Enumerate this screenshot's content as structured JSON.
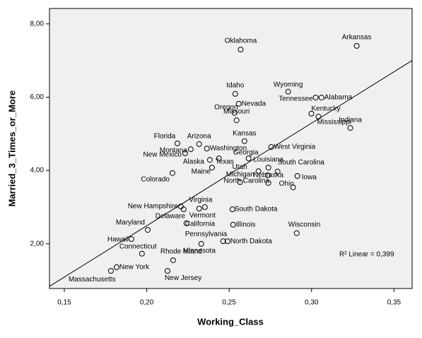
{
  "chart_data": {
    "type": "scatter",
    "x_label": "Working_Class",
    "y_label": "Married_3_Times_or_More",
    "annotation": "R² Linear = 0,399",
    "color": "#000000",
    "background": "#f0f0f0",
    "point_labels": [
      "Oklahoma",
      "Arkansas",
      "Idaho",
      "Wyoming",
      "Nevada",
      "Tennessee",
      "Alabama",
      "Oregon",
      "Missouri",
      "Kentucky",
      "Mississippi",
      "Indiana",
      "Florida",
      "Kansas",
      "Arizona",
      "Montana",
      "New Mexico",
      "Washington",
      "West Virginia",
      "Georgia",
      "Alaska",
      "Texas",
      "Maine",
      "Utah",
      "Louisiana",
      "North Carolina",
      "South Carolina",
      "Colorado",
      "Iowa",
      "Ohio",
      "Michigan",
      "Nebraska",
      "Virginia",
      "New Hampshire",
      "Delaware",
      "Vermont",
      "South Dakota",
      "California",
      "Illinois",
      "Maryland",
      "Hawaii",
      "Wisconsin",
      "Pennsylvania",
      "North Dakota",
      "Minnesota",
      "Connecticut",
      "Rhode Island",
      "New York",
      "Massachusetts",
      "New Jersey"
    ],
    "x": [
      0.257,
      0.3274,
      0.2537,
      0.2858,
      0.2558,
      0.3025,
      0.306,
      0.2533,
      0.2545,
      0.2999,
      0.3042,
      0.3235,
      0.2186,
      0.2593,
      0.2318,
      0.2267,
      0.2233,
      0.2365,
      0.2755,
      0.2618,
      0.2383,
      0.2438,
      0.2396,
      0.2678,
      0.2738,
      0.2734,
      0.2794,
      0.2156,
      0.2914,
      0.2888,
      0.2567,
      0.2738,
      0.2353,
      0.2207,
      0.2224,
      0.2318,
      0.252,
      0.2241,
      0.2524,
      0.2006,
      0.1907,
      0.291,
      0.2464,
      0.249,
      0.2331,
      0.1971,
      0.216,
      0.1817,
      0.1783,
      0.2126
    ],
    "values": [
      7.3,
      7.4,
      6.09,
      6.15,
      5.82,
      5.99,
      5.99,
      5.57,
      5.37,
      5.55,
      5.47,
      5.16,
      4.74,
      4.8,
      4.72,
      4.58,
      4.47,
      4.6,
      4.64,
      4.33,
      4.29,
      4.33,
      4.08,
      3.98,
      4.08,
      3.87,
      3.97,
      3.93,
      3.85,
      3.54,
      3.68,
      3.66,
      3.0,
      3.02,
      2.94,
      2.96,
      2.94,
      2.56,
      2.52,
      2.38,
      2.13,
      2.29,
      2.07,
      2.07,
      2.0,
      1.73,
      1.55,
      1.36,
      1.26,
      1.26
    ],
    "fit_line": {
      "x": [
        0.141,
        0.361
      ],
      "y": [
        0.84,
        7.0
      ]
    },
    "xlim": [
      0.141,
      0.361
    ],
    "xticks": [
      {
        "value": 0.15,
        "label": "0,15"
      },
      {
        "value": 0.2,
        "label": "0,20"
      },
      {
        "value": 0.25,
        "label": "0,25"
      },
      {
        "value": 0.3,
        "label": "0,30"
      },
      {
        "value": 0.35,
        "label": "0,35"
      }
    ],
    "ylim": [
      0.78,
      8.42
    ],
    "yticks": [
      {
        "value": 2,
        "label": "2,00"
      },
      {
        "value": 4,
        "label": "4,00"
      },
      {
        "value": 6,
        "label": "6,00"
      },
      {
        "value": 8,
        "label": "8,00"
      }
    ]
  }
}
